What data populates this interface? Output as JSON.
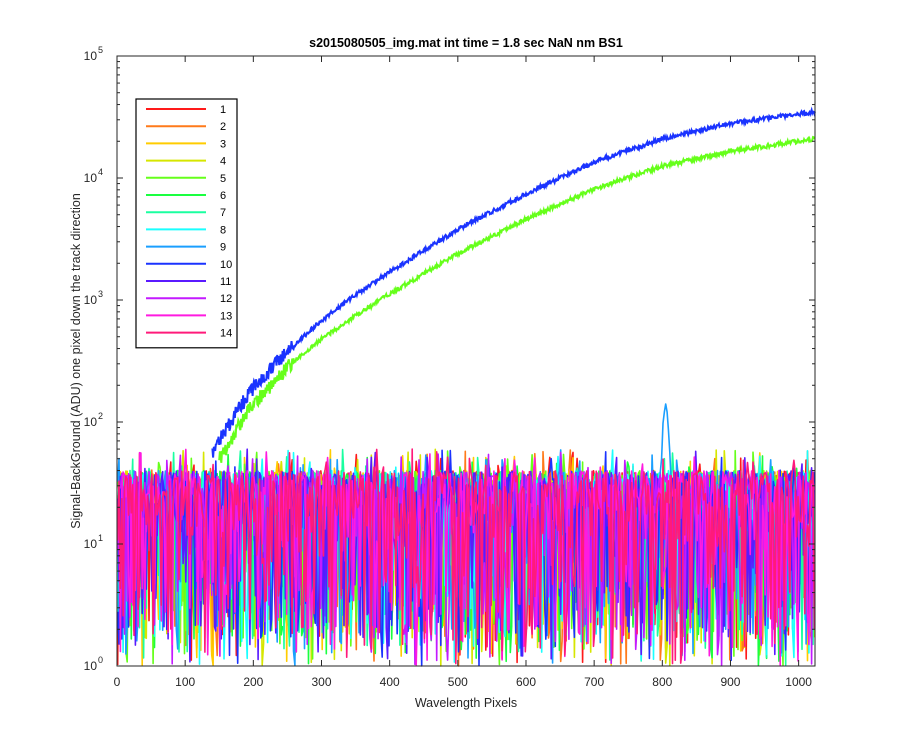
{
  "chart_data": {
    "type": "line",
    "title": "s2015080505_img.mat int time = 1.8 sec  NaN nm BS1",
    "xlabel": "Wavelength Pixels",
    "ylabel": "Signal-BackGround (ADU) one pixel down the track direction",
    "x_range": [
      0,
      1024
    ],
    "y_range": [
      1,
      100000
    ],
    "y_scale": "log",
    "grid": false,
    "legend_position": "top-left",
    "x_ticks": [
      "0",
      "100",
      "200",
      "300",
      "400",
      "500",
      "600",
      "700",
      "800",
      "900",
      "1000"
    ],
    "y_ticks": [
      {
        "base": "10",
        "exp": "0"
      },
      {
        "base": "10",
        "exp": "1"
      },
      {
        "base": "10",
        "exp": "2"
      },
      {
        "base": "10",
        "exp": "3"
      },
      {
        "base": "10",
        "exp": "4"
      },
      {
        "base": "10",
        "exp": "5"
      }
    ],
    "noise_series": {
      "description_values": "pixel-by-pixel noise between 1 and ~60 ADU for all 14 series across x = 0..1024",
      "floor": 1,
      "typical_high": 40,
      "peak_high": 60,
      "feature": {
        "x": 805,
        "peak": 165,
        "series": "9"
      }
    },
    "series": [
      {
        "name": "1",
        "color": "#ff1a1a"
      },
      {
        "name": "2",
        "color": "#ff7a1a"
      },
      {
        "name": "3",
        "color": "#ffcc00"
      },
      {
        "name": "4",
        "color": "#d6e600"
      },
      {
        "name": "5",
        "color": "#66ff1a"
      },
      {
        "name": "6",
        "color": "#1aff40"
      },
      {
        "name": "7",
        "color": "#1affa0"
      },
      {
        "name": "8",
        "color": "#1affff"
      },
      {
        "name": "9",
        "color": "#1a9fff"
      },
      {
        "name": "10",
        "color": "#1a33ff"
      },
      {
        "name": "11",
        "color": "#5a1aff"
      },
      {
        "name": "12",
        "color": "#c31aff"
      },
      {
        "name": "13",
        "color": "#ff1ae0"
      },
      {
        "name": "14",
        "color": "#ff1a7a"
      }
    ],
    "signal_curves": [
      {
        "series": "10",
        "x": [
          140,
          150,
          175,
          200,
          250,
          300,
          350,
          400,
          500,
          600,
          700,
          800,
          900,
          1024
        ],
        "y": [
          55,
          70,
          120,
          190,
          380,
          680,
          1100,
          1700,
          3800,
          7400,
          13500,
          21000,
          28000,
          35000
        ]
      },
      {
        "series": "5",
        "x": [
          150,
          160,
          180,
          200,
          250,
          300,
          350,
          400,
          500,
          600,
          700,
          800,
          900,
          1024
        ],
        "y": [
          50,
          60,
          95,
          140,
          280,
          480,
          740,
          1120,
          2400,
          4600,
          8100,
          12500,
          16500,
          21000
        ]
      }
    ]
  }
}
